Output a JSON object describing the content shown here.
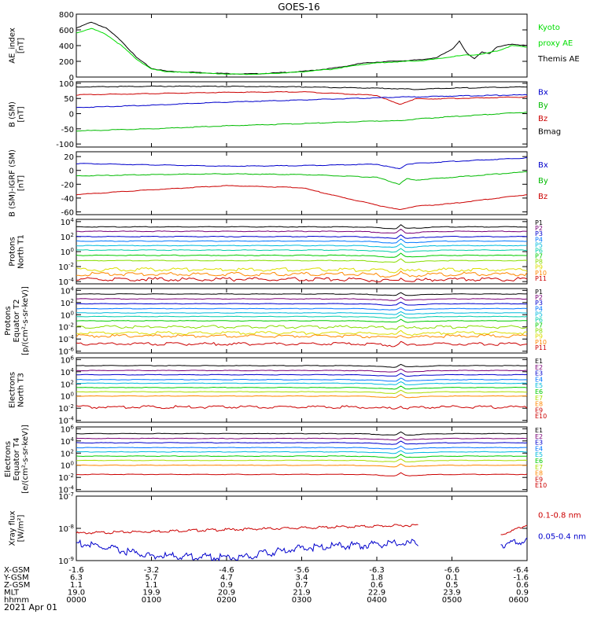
{
  "title": "GOES-16",
  "date_label": "2021 Apr 01",
  "panels": [
    {
      "id": "ae",
      "ylabel": [
        "AE_index",
        "[nT]"
      ],
      "yscale": "linear",
      "ylim": [
        0,
        800
      ],
      "yticks": [
        "0",
        "200",
        "400",
        "600",
        "800"
      ],
      "legend": [
        {
          "text": "Kyoto",
          "color": "#00dd00"
        },
        {
          "text": "proxy AE",
          "color": "#00dd00"
        },
        {
          "text": "Themis AE",
          "color": "#000000"
        }
      ]
    },
    {
      "id": "bsm",
      "ylabel": [
        "B (SM)",
        "[nT]"
      ],
      "yscale": "linear",
      "ylim": [
        -110,
        105
      ],
      "yticks": [
        "-100",
        "-50",
        "0",
        "50",
        "100"
      ],
      "legend": [
        {
          "text": "Bx",
          "color": "#0000cc"
        },
        {
          "text": "By",
          "color": "#00bb00"
        },
        {
          "text": "Bz",
          "color": "#cc0000"
        },
        {
          "text": "Bmag",
          "color": "#000000"
        }
      ]
    },
    {
      "id": "bigrf",
      "ylabel": [
        "B (SM)-IGRF (SM)",
        "[nT]"
      ],
      "yscale": "linear",
      "ylim": [
        -64,
        27
      ],
      "yticks": [
        "-60",
        "-40",
        "-20",
        "0",
        "20"
      ],
      "legend": [
        {
          "text": "Bx",
          "color": "#0000cc"
        },
        {
          "text": "By",
          "color": "#00bb00"
        },
        {
          "text": "Bz",
          "color": "#cc0000"
        }
      ]
    },
    {
      "id": "p_t1",
      "ylabel": [
        "Protons",
        "North T1"
      ],
      "yscale": "log",
      "ylim": [
        -4.3,
        4.3
      ],
      "yticks": [
        "10^-4",
        "10^-2",
        "10^0",
        "10^2",
        "10^4"
      ],
      "legend": [
        {
          "text": "P1",
          "color": "#000000"
        },
        {
          "text": "P2",
          "color": "#7a0077"
        },
        {
          "text": "P3",
          "color": "#0000cc"
        },
        {
          "text": "P4",
          "color": "#0077ff"
        },
        {
          "text": "P5",
          "color": "#00bbdd"
        },
        {
          "text": "P6",
          "color": "#00ccaa"
        },
        {
          "text": "P7",
          "color": "#00cc00"
        },
        {
          "text": "P8",
          "color": "#88dd00"
        },
        {
          "text": "P9",
          "color": "#dddd00"
        },
        {
          "text": "P10",
          "color": "#ff8800"
        },
        {
          "text": "P11",
          "color": "#cc0000"
        }
      ]
    },
    {
      "id": "p_t2",
      "ylabel": [
        "Protons",
        "Equator T2",
        "[p/(cm²-s-sr-keV)]"
      ],
      "yscale": "log",
      "ylim": [
        -6.3,
        4.3
      ],
      "yticks": [
        "10^-6",
        "10^-4",
        "10^-2",
        "10^0",
        "10^2",
        "10^4"
      ],
      "legend": [
        {
          "text": "P1",
          "color": "#000000"
        },
        {
          "text": "P2",
          "color": "#7a0077"
        },
        {
          "text": "P3",
          "color": "#0000cc"
        },
        {
          "text": "P4",
          "color": "#0077ff"
        },
        {
          "text": "P5",
          "color": "#00bbdd"
        },
        {
          "text": "P6",
          "color": "#00ccaa"
        },
        {
          "text": "P7",
          "color": "#00cc00"
        },
        {
          "text": "P8",
          "color": "#88dd00"
        },
        {
          "text": "P9",
          "color": "#dddd00"
        },
        {
          "text": "P10",
          "color": "#ff8800"
        },
        {
          "text": "P11",
          "color": "#cc0000"
        }
      ]
    },
    {
      "id": "e_t3",
      "ylabel": [
        "Electrons",
        "North T3"
      ],
      "yscale": "log",
      "ylim": [
        -4.3,
        6.3
      ],
      "yticks": [
        "10^-4",
        "10^-2",
        "10^0",
        "10^2",
        "10^4",
        "10^6"
      ],
      "legend": [
        {
          "text": "E1",
          "color": "#000000"
        },
        {
          "text": "E2",
          "color": "#7a0077"
        },
        {
          "text": "E3",
          "color": "#0000cc"
        },
        {
          "text": "E4",
          "color": "#0077ff"
        },
        {
          "text": "E5",
          "color": "#00bbdd"
        },
        {
          "text": "E6",
          "color": "#00cc00"
        },
        {
          "text": "E7",
          "color": "#aadd00"
        },
        {
          "text": "E8",
          "color": "#ff8800"
        },
        {
          "text": "E9",
          "color": "#cc0000"
        },
        {
          "text": "E10",
          "color": "#cc0000"
        }
      ]
    },
    {
      "id": "e_t4",
      "ylabel": [
        "Electrons",
        "Equator T4",
        "[e/(cm²-s-sr-keV)]"
      ],
      "yscale": "log",
      "ylim": [
        -4.3,
        6.3
      ],
      "yticks": [
        "10^-4",
        "10^-2",
        "10^0",
        "10^2",
        "10^4",
        "10^6"
      ],
      "legend": [
        {
          "text": "E1",
          "color": "#000000"
        },
        {
          "text": "E2",
          "color": "#7a0077"
        },
        {
          "text": "E3",
          "color": "#0000cc"
        },
        {
          "text": "E4",
          "color": "#0077ff"
        },
        {
          "text": "E5",
          "color": "#00bbdd"
        },
        {
          "text": "E6",
          "color": "#00cc00"
        },
        {
          "text": "E7",
          "color": "#aadd00"
        },
        {
          "text": "E8",
          "color": "#ff8800"
        },
        {
          "text": "E9",
          "color": "#cc0000"
        },
        {
          "text": "E10",
          "color": "#cc0000"
        }
      ]
    },
    {
      "id": "xray",
      "ylabel": [
        "Xray flux",
        "[W/m²]"
      ],
      "yscale": "log",
      "ylim": [
        -9,
        -7
      ],
      "yticks": [
        "10^-9",
        "10^-8",
        "10^-7"
      ],
      "legend": [
        {
          "text": "0.1-0.8 nm",
          "color": "#cc0000"
        },
        {
          "text": "0.05-0.4 nm",
          "color": "#0000cc"
        }
      ]
    }
  ],
  "x_axis": {
    "row_labels": [
      "X-GSM",
      "Y-GSM",
      "Z-GSM",
      "MLT",
      "hhmm"
    ],
    "columns": [
      [
        "-1.6",
        "6.3",
        "1.1",
        "19.0",
        "0000"
      ],
      [
        "-3.2",
        "5.7",
        "1.1",
        "19.9",
        "0100"
      ],
      [
        "-4.6",
        "4.7",
        "0.9",
        "20.9",
        "0200"
      ],
      [
        "-5.6",
        "3.4",
        "0.7",
        "21.9",
        "0300"
      ],
      [
        "-6.3",
        "1.8",
        "0.6",
        "22.9",
        "0400"
      ],
      [
        "-6.6",
        "0.1",
        "0.5",
        "23.9",
        "0500"
      ],
      [
        "-6.4",
        "-1.6",
        "0.6",
        "0.9",
        "0600"
      ]
    ]
  },
  "chart_data": [
    {
      "type": "line",
      "panel": "ae",
      "x_unit": "hours UT",
      "xlim": [
        0,
        6
      ],
      "series": [
        {
          "name": "Themis AE",
          "color": "#000000",
          "x": [
            0,
            0.2,
            0.4,
            0.6,
            0.8,
            1.0,
            1.2,
            1.4,
            1.6,
            1.8,
            2.0,
            2.2,
            2.4,
            2.6,
            2.8,
            3.0,
            3.2,
            3.4,
            3.6,
            3.8,
            4.0,
            4.2,
            4.4,
            4.6,
            4.8,
            5.0,
            5.1,
            5.2,
            5.3,
            5.4,
            5.5,
            5.6,
            5.8,
            6.0
          ],
          "y": [
            620,
            700,
            620,
            460,
            250,
            110,
            75,
            65,
            60,
            50,
            45,
            40,
            42,
            50,
            60,
            70,
            90,
            110,
            140,
            175,
            190,
            200,
            210,
            220,
            250,
            350,
            460,
            300,
            230,
            320,
            300,
            380,
            420,
            400
          ]
        },
        {
          "name": "Kyoto proxy AE",
          "color": "#00dd00",
          "x": [
            0,
            0.2,
            0.4,
            0.6,
            0.8,
            1.0,
            1.2,
            1.4,
            1.6,
            1.8,
            2.0,
            2.2,
            2.4,
            2.6,
            2.8,
            3.0,
            3.2,
            3.4,
            3.6,
            3.8,
            4.0,
            4.2,
            4.4,
            4.6,
            4.8,
            5.0,
            5.2,
            5.4,
            5.6,
            5.8,
            6.0
          ],
          "y": [
            560,
            620,
            540,
            400,
            230,
            100,
            70,
            60,
            55,
            45,
            40,
            35,
            38,
            45,
            55,
            65,
            85,
            100,
            130,
            160,
            180,
            190,
            200,
            210,
            230,
            260,
            280,
            290,
            330,
            400,
            380
          ]
        }
      ]
    },
    {
      "type": "line",
      "panel": "bsm",
      "x_unit": "hours UT",
      "xlim": [
        0,
        6
      ],
      "series": [
        {
          "name": "Bmag",
          "color": "#000000",
          "x": [
            0,
            1,
            2,
            3,
            4,
            4.3,
            4.5,
            5,
            6
          ],
          "y": [
            88,
            90,
            90,
            88,
            84,
            82,
            80,
            84,
            88
          ]
        },
        {
          "name": "Bz",
          "color": "#cc0000",
          "x": [
            0,
            1,
            2,
            3,
            4,
            4.3,
            4.5,
            5,
            6
          ],
          "y": [
            62,
            66,
            70,
            72,
            60,
            30,
            48,
            50,
            55
          ]
        },
        {
          "name": "Bx",
          "color": "#0000cc",
          "x": [
            0,
            1,
            2,
            3,
            4,
            4.3,
            4.5,
            5,
            6
          ],
          "y": [
            20,
            28,
            38,
            45,
            52,
            55,
            55,
            58,
            62
          ]
        },
        {
          "name": "By",
          "color": "#00bb00",
          "x": [
            0,
            1,
            2,
            3,
            4,
            4.3,
            4.5,
            5,
            6
          ],
          "y": [
            -57,
            -50,
            -40,
            -33,
            -24,
            -24,
            -18,
            -10,
            5
          ]
        }
      ]
    },
    {
      "type": "line",
      "panel": "bigrf",
      "x_unit": "hours UT",
      "xlim": [
        0,
        6
      ],
      "series": [
        {
          "name": "Bx",
          "color": "#0000cc",
          "x": [
            0,
            1,
            2,
            3,
            4,
            4.3,
            4.4,
            4.5,
            5,
            6
          ],
          "y": [
            10,
            8,
            6,
            7,
            9,
            2,
            9,
            10,
            13,
            18
          ]
        },
        {
          "name": "By",
          "color": "#00bb00",
          "x": [
            0,
            1,
            2,
            3,
            4,
            4.3,
            4.4,
            4.5,
            5,
            6
          ],
          "y": [
            -8,
            -6,
            -5,
            -6,
            -10,
            -20,
            -12,
            -14,
            -10,
            -2
          ]
        },
        {
          "name": "Bz",
          "color": "#cc0000",
          "x": [
            0,
            1,
            2,
            3,
            3.5,
            4,
            4.3,
            4.5,
            5,
            6
          ],
          "y": [
            -35,
            -28,
            -22,
            -25,
            -38,
            -50,
            -57,
            -52,
            -48,
            -35
          ]
        }
      ]
    },
    {
      "type": "line",
      "panel": "p_t1",
      "yscale": "log",
      "xlim": [
        0,
        6
      ],
      "series": [
        {
          "name": "P1",
          "color": "#000000",
          "base_log10": 3.3
        },
        {
          "name": "P2",
          "color": "#7a0077",
          "base_log10": 2.7
        },
        {
          "name": "P3",
          "color": "#0000cc",
          "base_log10": 2.0
        },
        {
          "name": "P4",
          "color": "#0077ff",
          "base_log10": 1.4
        },
        {
          "name": "P5",
          "color": "#00bbdd",
          "base_log10": 0.8
        },
        {
          "name": "P6",
          "color": "#00ccaa",
          "base_log10": 0.2
        },
        {
          "name": "P7",
          "color": "#00cc00",
          "base_log10": -0.5
        },
        {
          "name": "P8",
          "color": "#88dd00",
          "base_log10": -1.2
        },
        {
          "name": "P9",
          "color": "#dddd00",
          "base_log10": -2.4
        },
        {
          "name": "P10",
          "color": "#ff8800",
          "base_log10": -3.0
        },
        {
          "name": "P11",
          "color": "#cc0000",
          "base_log10": -3.7
        }
      ]
    },
    {
      "type": "line",
      "panel": "p_t2",
      "yscale": "log",
      "xlim": [
        0,
        6
      ],
      "series": [
        {
          "name": "P1",
          "color": "#000000",
          "base_log10": 3.4
        },
        {
          "name": "P2",
          "color": "#7a0077",
          "base_log10": 2.6
        },
        {
          "name": "P3",
          "color": "#0000cc",
          "base_log10": 1.8
        },
        {
          "name": "P4",
          "color": "#0077ff",
          "base_log10": 1.0
        },
        {
          "name": "P5",
          "color": "#00bbdd",
          "base_log10": 0.3
        },
        {
          "name": "P6",
          "color": "#00ccaa",
          "base_log10": -0.3
        },
        {
          "name": "P7",
          "color": "#00cc00",
          "base_log10": -1.0
        },
        {
          "name": "P8",
          "color": "#88dd00",
          "base_log10": -2.0
        },
        {
          "name": "P9",
          "color": "#dddd00",
          "base_log10": -3.0
        },
        {
          "name": "P10",
          "color": "#ff8800",
          "base_log10": -3.5
        },
        {
          "name": "P11",
          "color": "#cc0000",
          "base_log10": -4.8
        }
      ]
    },
    {
      "type": "line",
      "panel": "e_t3",
      "yscale": "log",
      "xlim": [
        0,
        6
      ],
      "series": [
        {
          "name": "E1",
          "color": "#000000",
          "base_log10": 5.0
        },
        {
          "name": "E2",
          "color": "#7a0077",
          "base_log10": 4.2
        },
        {
          "name": "E3",
          "color": "#0000cc",
          "base_log10": 3.5
        },
        {
          "name": "E4",
          "color": "#0077ff",
          "base_log10": 2.7
        },
        {
          "name": "E5",
          "color": "#00bbdd",
          "base_log10": 2.1
        },
        {
          "name": "E6",
          "color": "#00cc00",
          "base_log10": 1.4
        },
        {
          "name": "E7",
          "color": "#aadd00",
          "base_log10": 0.7
        },
        {
          "name": "E8",
          "color": "#ff8800",
          "base_log10": 0.0
        },
        {
          "name": "E9",
          "color": "#cc0000",
          "base_log10": -1.8
        }
      ]
    },
    {
      "type": "line",
      "panel": "e_t4",
      "yscale": "log",
      "xlim": [
        0,
        6
      ],
      "series": [
        {
          "name": "E1",
          "color": "#000000",
          "base_log10": 5.2
        },
        {
          "name": "E2",
          "color": "#7a0077",
          "base_log10": 4.4
        },
        {
          "name": "E3",
          "color": "#0000cc",
          "base_log10": 3.7
        },
        {
          "name": "E4",
          "color": "#0077ff",
          "base_log10": 2.9
        },
        {
          "name": "E5",
          "color": "#00bbdd",
          "base_log10": 2.2
        },
        {
          "name": "E6",
          "color": "#00cc00",
          "base_log10": 1.5
        },
        {
          "name": "E7",
          "color": "#aadd00",
          "base_log10": 0.8
        },
        {
          "name": "E8",
          "color": "#ff8800",
          "base_log10": 0.0
        },
        {
          "name": "E9",
          "color": "#cc0000",
          "base_log10": -1.5
        }
      ]
    },
    {
      "type": "line",
      "panel": "xray",
      "yscale": "log",
      "xlim": [
        0,
        6
      ],
      "series": [
        {
          "name": "0.1-0.8 nm",
          "color": "#cc0000",
          "segments": [
            {
              "x": [
                0,
                4.55
              ],
              "y_log10": [
                -8.15,
                -7.9
              ]
            },
            {
              "x": [
                5.65,
                6.0
              ],
              "y_log10": [
                -8.2,
                -7.9
              ]
            }
          ]
        },
        {
          "name": "0.05-0.4 nm",
          "color": "#0000cc",
          "segments": [
            {
              "x": [
                0,
                1.0,
                2.2,
                3.0,
                4.55
              ],
              "y_log10": [
                -8.45,
                -8.85,
                -8.9,
                -8.6,
                -8.45
              ]
            },
            {
              "x": [
                5.65,
                6.0
              ],
              "y_log10": [
                -8.5,
                -8.4
              ]
            }
          ]
        }
      ]
    }
  ]
}
